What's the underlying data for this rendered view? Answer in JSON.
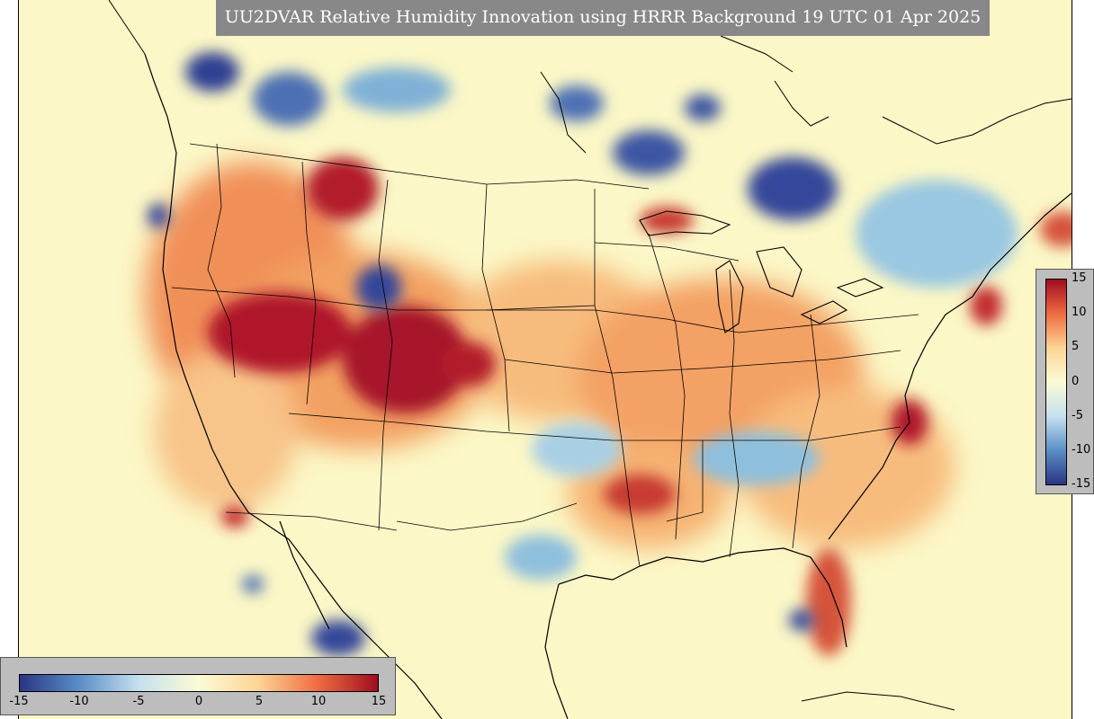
{
  "title": "UU2DVAR Relative Humidity Innovation using HRRR Background 19 UTC 01 Apr 2025",
  "colorbar": {
    "min": -15,
    "max": 15,
    "vertical_ticks": [
      "15",
      "10",
      "5",
      "0",
      "-5",
      "-10",
      "-15"
    ],
    "horizontal_ticks": [
      "-15",
      "-10",
      "-5",
      "0",
      "5",
      "10",
      "15"
    ],
    "colors": {
      "neg_max": "#2a3585",
      "neg_mid": "#5b8ec6",
      "neg_low": "#c6e0ee",
      "zero": "#fbfbd6",
      "pos_low": "#fcd495",
      "pos_mid": "#ef6b40",
      "pos_max": "#9e0d20"
    }
  },
  "map": {
    "background_color": "#fbf7c6",
    "border_color": "#000000"
  }
}
